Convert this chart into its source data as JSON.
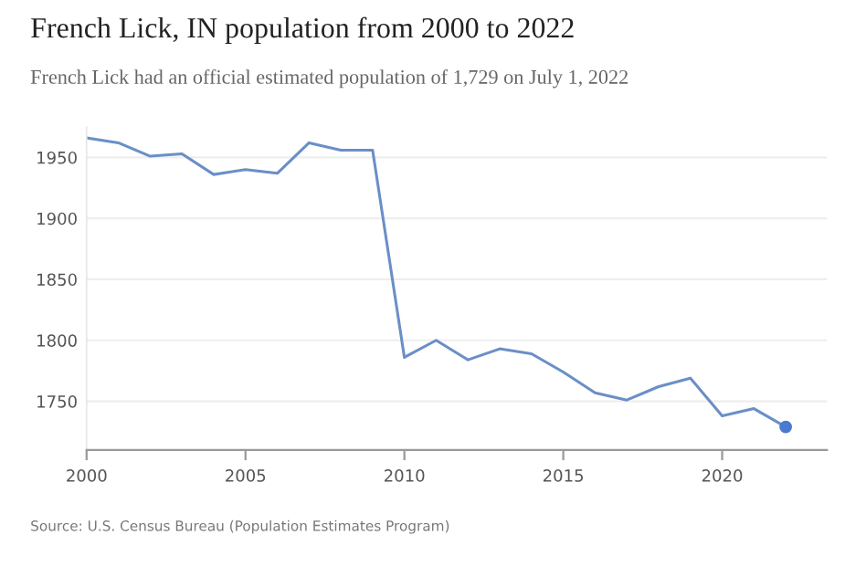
{
  "chart_data": {
    "type": "line",
    "title": "French Lick, IN population from 2000 to 2022",
    "subtitle": "French Lick had an official estimated population of 1,729 on July 1, 2022",
    "x": [
      2000,
      2001,
      2002,
      2003,
      2004,
      2005,
      2006,
      2007,
      2008,
      2009,
      2010,
      2011,
      2012,
      2013,
      2014,
      2015,
      2016,
      2017,
      2018,
      2019,
      2020,
      2021,
      2022
    ],
    "series": [
      {
        "color": "#6a8fc7",
        "values": [
          1966,
          1962,
          1951,
          1953,
          1936,
          1940,
          1937,
          1962,
          1956,
          1956,
          1786,
          1800,
          1784,
          1793,
          1789,
          1774,
          1757,
          1751,
          1762,
          1769,
          1738,
          1744,
          1729
        ]
      }
    ],
    "xlim": [
      2000,
      2023.3
    ],
    "xticks": [
      2000,
      2005,
      2010,
      2015,
      2020
    ],
    "ylim": [
      1710,
      1975
    ],
    "yticks": [
      1750,
      1800,
      1850,
      1900,
      1950
    ],
    "grid": "y",
    "marker": "none",
    "line_style": "solid",
    "annotations": [
      "Source: U.S. Census Bureau (Population Estimates Program)"
    ]
  }
}
